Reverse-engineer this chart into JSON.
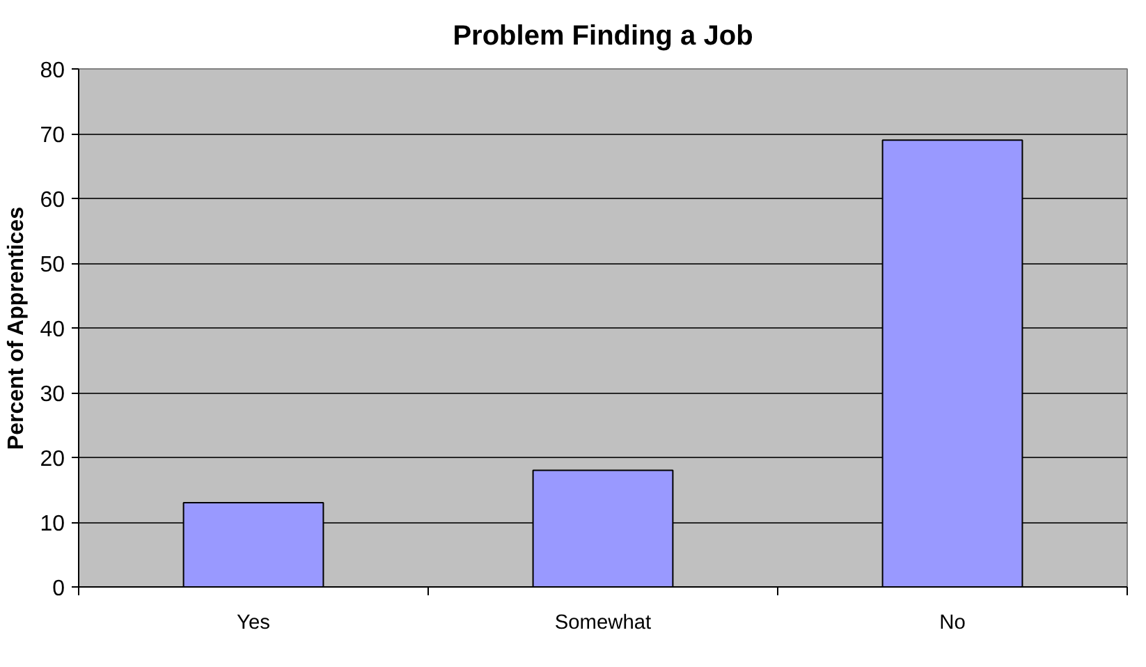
{
  "chart_data": {
    "type": "bar",
    "title": "Problem Finding a Job",
    "ylabel": "Percent of Apprentices",
    "categories": [
      "Yes",
      "Somewhat",
      "No"
    ],
    "values": [
      13,
      18,
      69
    ],
    "color": "#9999ff",
    "ylim": [
      0,
      80
    ],
    "yticks": [
      0,
      10,
      20,
      30,
      40,
      50,
      60,
      70,
      80
    ],
    "grid": "y"
  }
}
